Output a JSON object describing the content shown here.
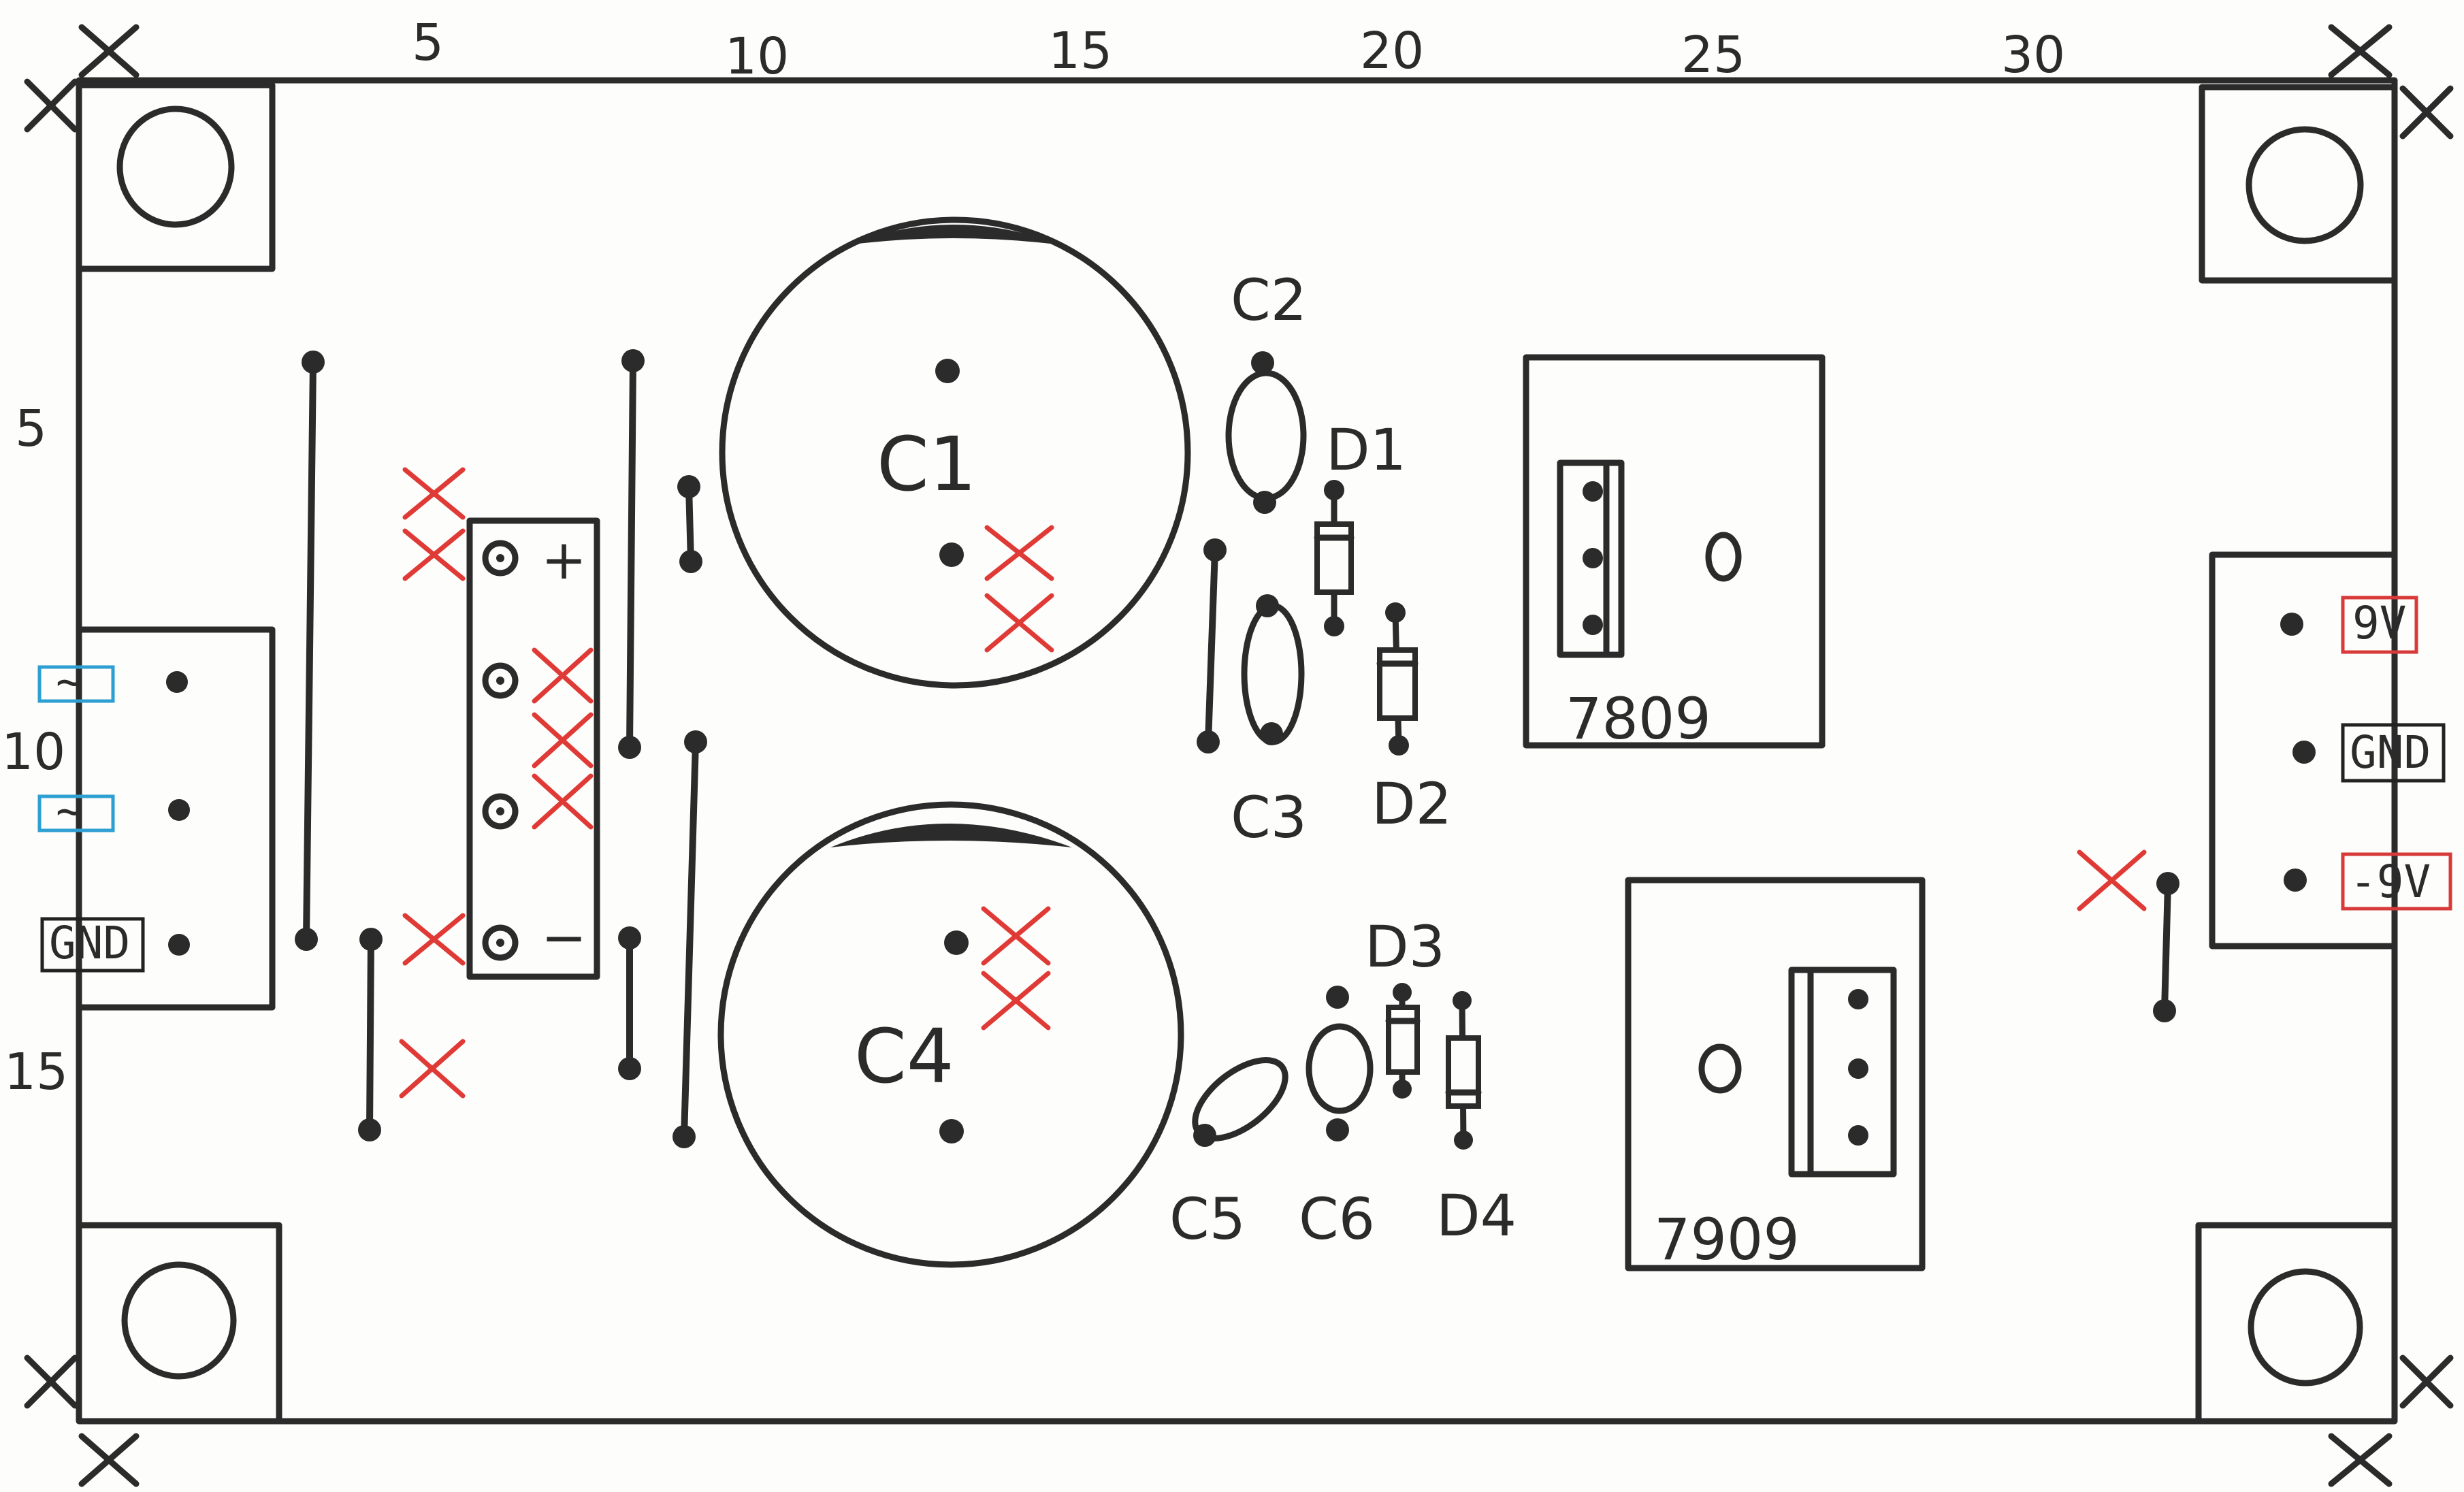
{
  "ruler": {
    "top": [
      "5",
      "10",
      "15",
      "20",
      "25",
      "30"
    ],
    "left": [
      "5",
      "10",
      "15"
    ]
  },
  "components": {
    "c1": "C1",
    "c2": "C2",
    "c3": "C3",
    "c4": "C4",
    "c5": "C5",
    "c6": "C6",
    "d1": "D1",
    "d2": "D2",
    "d3": "D3",
    "d4": "D4",
    "reg_pos": "7809",
    "reg_neg": "7909"
  },
  "bridge": {
    "plus": "+",
    "minus": "−"
  },
  "input_connector": {
    "ac1": "~",
    "ac2": "~",
    "gnd": "GND"
  },
  "output_connector": {
    "pos": "9V",
    "gnd": "GND",
    "neg": "-9V"
  },
  "colors": {
    "ink": "#2b2b2b",
    "red_mark": "#e03a36",
    "ac_tag": "#2e9fd3",
    "voltage_tag": "#d83a3a",
    "gnd_tag": "#222222"
  }
}
